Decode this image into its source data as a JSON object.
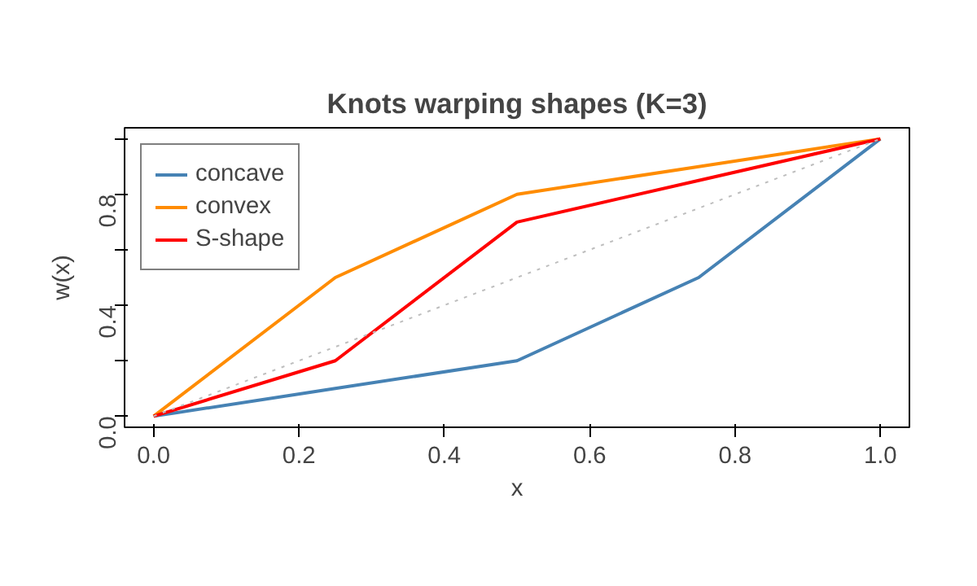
{
  "chart_data": {
    "type": "line",
    "title": "Knots warping shapes (K=3)",
    "xlabel": "x",
    "ylabel": "w(x)",
    "x": [
      0,
      0.25,
      0.5,
      0.75,
      1
    ],
    "series": [
      {
        "name": "concave",
        "color": "#4682b4",
        "values": [
          0,
          0.1,
          0.2,
          0.5,
          1
        ]
      },
      {
        "name": "convex",
        "color": "#ff8c00",
        "values": [
          0,
          0.5,
          0.8,
          0.9,
          1
        ]
      },
      {
        "name": "S-shape",
        "color": "#ff0000",
        "values": [
          0,
          0.2,
          0.7,
          0.85,
          1
        ]
      },
      {
        "color": "#bebebe",
        "x": [
          0,
          1
        ],
        "values": [
          0,
          1
        ],
        "line_style": "dotted"
      }
    ],
    "xlim": [
      -0.04,
      1.04
    ],
    "ylim": [
      -0.04,
      1.04
    ],
    "xticks": [
      {
        "value": 0,
        "label": "0.0"
      },
      0.2,
      0.4,
      0.6,
      0.8,
      {
        "value": 1,
        "label": "1.0"
      }
    ],
    "yticks": [
      {
        "value": 0,
        "label": "0.0"
      },
      {
        "value": 0.2,
        "label": null
      },
      0.4,
      {
        "value": 0.6,
        "label": null
      },
      0.8,
      {
        "value": 1,
        "label": null
      }
    ],
    "grid": false,
    "legend": "top left",
    "line_style": "solid"
  }
}
